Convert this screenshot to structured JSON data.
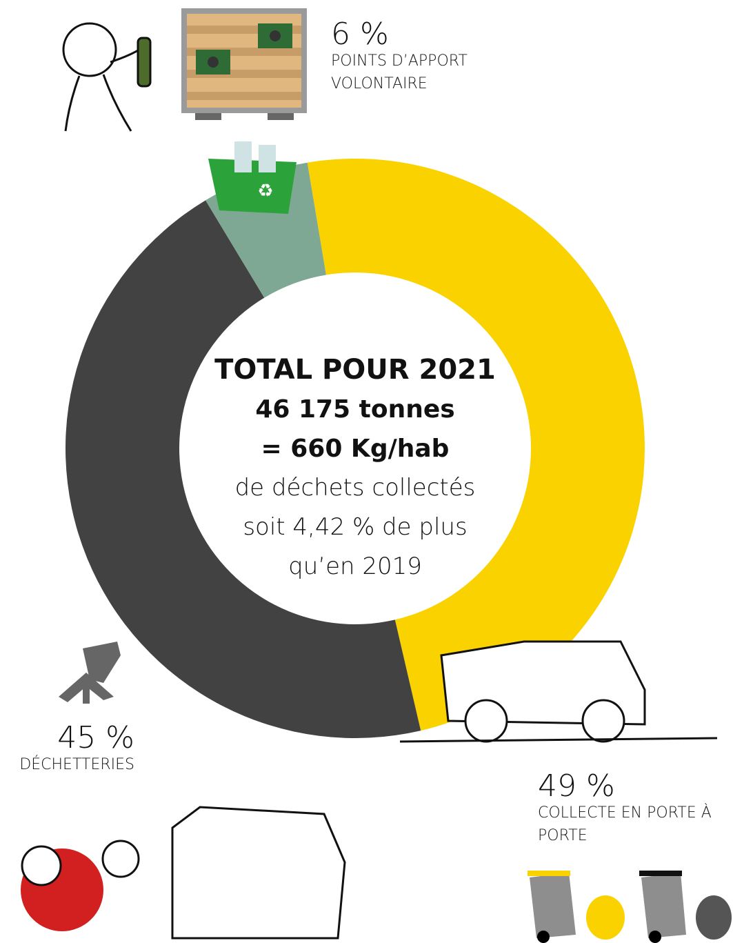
{
  "chart_data": {
    "type": "donut",
    "categories": [
      "COLLECTE EN PORTE À PORTE",
      "DÉCHETTERIES",
      "POINTS D’APPORT VOLONTAIRE"
    ],
    "values": [
      49,
      45,
      6
    ],
    "value_labels": [
      "49 %",
      "45 %",
      "6 %"
    ],
    "colors": [
      "#f9d200",
      "#424242",
      "#7fa894"
    ],
    "center_title": "TOTAL POUR 2021",
    "center_lines": [
      "46 175 tonnes",
      "= 660 Kg/hab"
    ],
    "center_text": [
      "de déchets collectés",
      "soit 4,42 % de plus",
      "qu’en 2019"
    ]
  }
}
